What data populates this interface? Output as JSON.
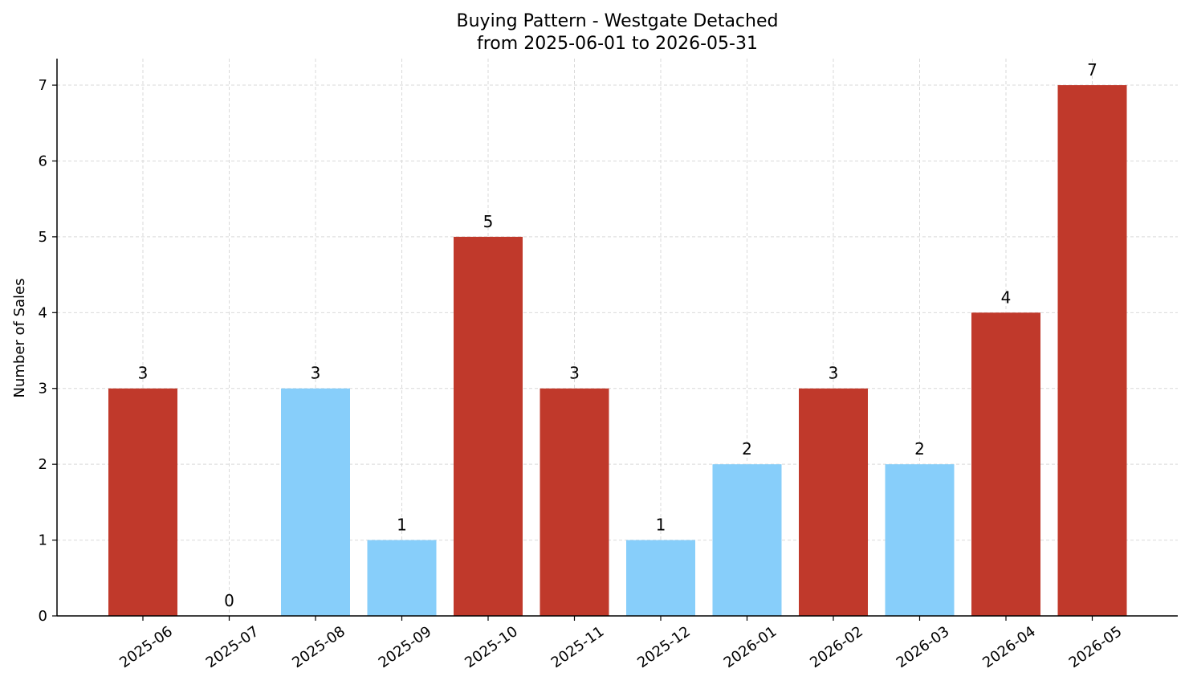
{
  "chart_data": {
    "type": "bar",
    "title": "Buying Pattern - Westgate Detached",
    "subtitle": "from 2025-06-01 to 2026-05-31",
    "xlabel": "",
    "ylabel": "Number of Sales",
    "categories": [
      "2025-06",
      "2025-07",
      "2025-08",
      "2025-09",
      "2025-10",
      "2025-11",
      "2025-12",
      "2026-01",
      "2026-02",
      "2026-03",
      "2026-04",
      "2026-05"
    ],
    "values": [
      3,
      0,
      3,
      1,
      5,
      3,
      1,
      2,
      3,
      2,
      4,
      7
    ],
    "bar_colors": [
      "#c0392b",
      "#c0392b",
      "#87cefa",
      "#87cefa",
      "#c0392b",
      "#c0392b",
      "#87cefa",
      "#87cefa",
      "#c0392b",
      "#87cefa",
      "#c0392b",
      "#c0392b"
    ],
    "yticks": [
      0,
      1,
      2,
      3,
      4,
      5,
      6,
      7
    ],
    "ylim": [
      0,
      7.35
    ],
    "grid": true,
    "data_labels": true
  }
}
